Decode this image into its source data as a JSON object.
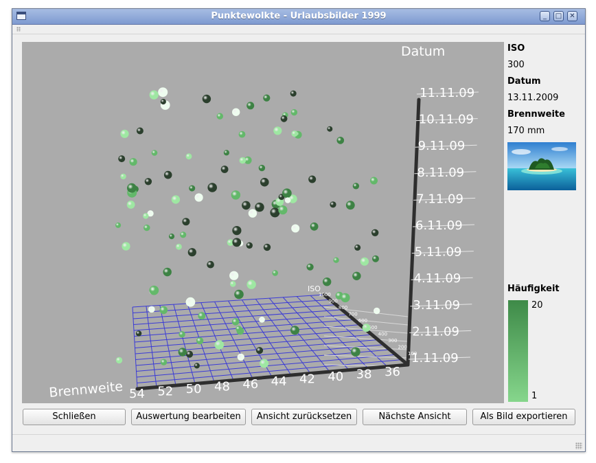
{
  "window": {
    "title": "Punktewolkte - Urlaubsbilder 1999",
    "controls": [
      "minimize-icon",
      "maximize-icon",
      "close-icon"
    ]
  },
  "plot": {
    "z_axis_title": "Datum",
    "x_axis_title": "Brennweite",
    "y_axis_title": "ISO",
    "date_ticks": [
      "1.11.09",
      "2.11.09",
      "3.11.09",
      "4.11.09",
      "5.11.09",
      "6.11.09",
      "7.11.09",
      "8.11.09",
      "9.11.09",
      "10.11.09",
      "11.11.09"
    ],
    "brennweite_ticks": [
      "54",
      "52",
      "50",
      "48",
      "46",
      "44",
      "42",
      "40",
      "38",
      "36"
    ],
    "iso_ticks": [
      "100",
      "200",
      "300",
      "400",
      "500",
      "600",
      "700",
      "800",
      "900",
      "1000"
    ],
    "background": "#ababab",
    "grid_color": "#3a3ad6",
    "point_colors": [
      "#2b3f2d",
      "#3d8244",
      "#63b86a",
      "#9ee7a2",
      "#eefcef"
    ]
  },
  "info": {
    "iso_label": "ISO",
    "iso_value": "300",
    "datum_label": "Datum",
    "datum_value": "13.11.2009",
    "brennweite_label": "Brennweite",
    "brennweite_value": "170 mm",
    "haeufigkeit_label": "Häufigkeit",
    "haeufigkeit_max": "20",
    "haeufigkeit_min": "1"
  },
  "buttons": {
    "close": "Schließen",
    "edit": "Auswertung bearbeiten",
    "reset": "Ansicht zurücksetzen",
    "next": "Nächste Ansicht",
    "export": "Als Bild exportieren"
  }
}
